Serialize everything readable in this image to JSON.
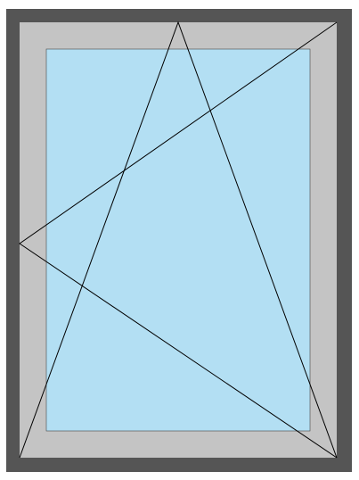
{
  "diagram": {
    "type": "window-elevation",
    "opening_type": "tilt-and-turn",
    "hinge_side": "left",
    "colors": {
      "outer_frame": "#555555",
      "sash_frame": "#c4c4c4",
      "glass": "#b3dff3",
      "line": "#000000",
      "background": "#ffffff"
    }
  }
}
